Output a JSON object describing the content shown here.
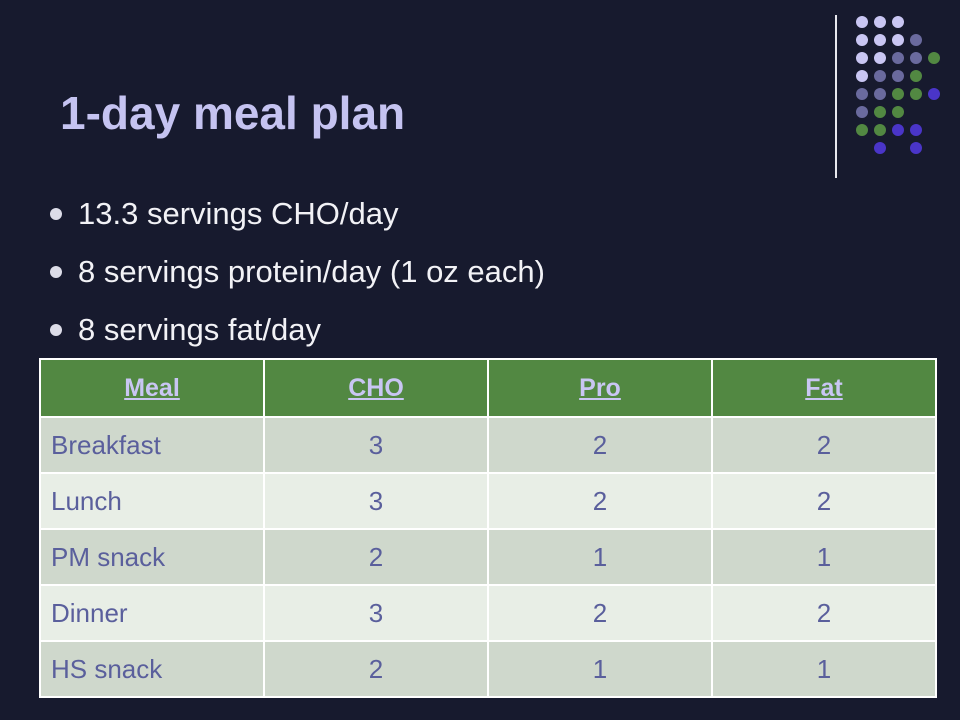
{
  "slide": {
    "title": "1-day meal plan",
    "bullets": [
      "13.3 servings CHO/day",
      "8 servings protein/day (1 oz each)",
      "8 servings fat/day"
    ]
  },
  "table": {
    "headers": [
      "Meal",
      "CHO",
      "Pro",
      "Fat"
    ],
    "rows": [
      {
        "meal": "Breakfast",
        "cho": "3",
        "pro": "2",
        "fat": "2"
      },
      {
        "meal": "Lunch",
        "cho": "3",
        "pro": "2",
        "fat": "2"
      },
      {
        "meal": "PM snack",
        "cho": "2",
        "pro": "1",
        "fat": "1"
      },
      {
        "meal": "Dinner",
        "cho": "3",
        "pro": "2",
        "fat": "2"
      },
      {
        "meal": "HS snack",
        "cho": "2",
        "pro": "1",
        "fat": "1"
      }
    ]
  },
  "decoration": {
    "dot_colors": {
      "L": "#c9c6f3",
      "M": "#6a6a9e",
      "G": "#528842",
      "B": "#4a35c8"
    },
    "dot_pattern": [
      "LLL...",
      "LLLM..",
      "LLMMG.",
      "LMMG..",
      "MMGGB.",
      "MGG...",
      "GGBB..",
      ".B.B.."
    ]
  }
}
